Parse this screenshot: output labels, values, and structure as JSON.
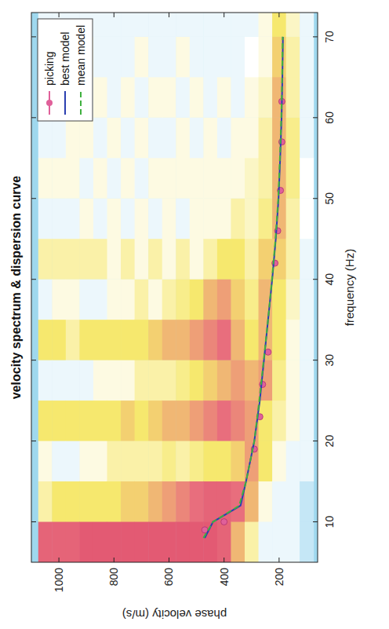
{
  "chart_data": {
    "type": "line",
    "title": "velocity spectrum & dispersion curve",
    "x_label": "frequency (Hz)",
    "y_label": "phase velocity (m/s)",
    "xlim": [
      5,
      73
    ],
    "ylim": [
      60,
      1100
    ],
    "xticks": [
      10,
      20,
      30,
      40,
      50,
      60,
      70
    ],
    "yticks": [
      200,
      400,
      600,
      800,
      1000
    ],
    "legend": "upper right",
    "grid": false,
    "series": [
      {
        "name": "picking",
        "color": "#e0609a",
        "type": "scatter",
        "marker": "circle",
        "line_style": "none",
        "x": [
          9,
          10,
          19,
          23,
          27,
          31,
          42,
          46,
          51,
          57,
          62
        ],
        "values": [
          470,
          400,
          290,
          270,
          260,
          240,
          215,
          205,
          195,
          190,
          190
        ]
      },
      {
        "name": "best model",
        "color": "#2b3fb0",
        "type": "line",
        "line_style": "solid",
        "x": [
          8,
          10,
          12,
          15,
          20,
          25,
          30,
          35,
          40,
          45,
          50,
          55,
          60,
          65,
          70
        ],
        "values": [
          470,
          440,
          340,
          320,
          290,
          270,
          255,
          240,
          225,
          212,
          202,
          196,
          191,
          188,
          186
        ]
      },
      {
        "name": "mean model",
        "color": "#3fb03f",
        "type": "line",
        "line_style": "dashed",
        "x": [
          8,
          10,
          12,
          15,
          20,
          25,
          30,
          35,
          40,
          45,
          50,
          55,
          60,
          65,
          70
        ],
        "values": [
          475,
          440,
          345,
          320,
          290,
          272,
          256,
          240,
          226,
          213,
          203,
          197,
          192,
          189,
          187
        ]
      }
    ],
    "spectrum": {
      "frequency": [
        7.5,
        12.5,
        17.5,
        22.5,
        27.5,
        32.5,
        37.5,
        42.5,
        47.5,
        52.5,
        57.5,
        62.5,
        67.5,
        72.5
      ],
      "velocity": [
        1050,
        1000,
        950,
        900,
        850,
        800,
        750,
        700,
        650,
        600,
        550,
        500,
        450,
        400,
        350,
        300,
        250,
        200,
        150,
        100
      ],
      "values": [
        [
          0.9,
          0.5,
          0.4,
          0.6,
          0.3,
          0.6,
          0.3,
          0.5,
          0.3,
          0.4,
          0.3,
          0.4,
          0.3,
          0.3
        ],
        [
          0.9,
          0.6,
          0.3,
          0.6,
          0.3,
          0.6,
          0.4,
          0.5,
          0.3,
          0.4,
          0.3,
          0.4,
          0.3,
          0.3
        ],
        [
          0.9,
          0.6,
          0.3,
          0.6,
          0.3,
          0.5,
          0.4,
          0.5,
          0.3,
          0.4,
          0.4,
          0.3,
          0.3,
          0.3
        ],
        [
          0.95,
          0.6,
          0.4,
          0.6,
          0.3,
          0.6,
          0.3,
          0.5,
          0.4,
          0.3,
          0.4,
          0.3,
          0.4,
          0.3
        ],
        [
          0.95,
          0.6,
          0.4,
          0.6,
          0.4,
          0.6,
          0.3,
          0.5,
          0.3,
          0.4,
          0.3,
          0.4,
          0.3,
          0.3
        ],
        [
          0.95,
          0.6,
          0.5,
          0.6,
          0.4,
          0.6,
          0.4,
          0.4,
          0.4,
          0.3,
          0.4,
          0.3,
          0.3,
          0.3
        ],
        [
          0.95,
          0.65,
          0.5,
          0.65,
          0.4,
          0.6,
          0.4,
          0.5,
          0.3,
          0.4,
          0.3,
          0.4,
          0.3,
          0.3
        ],
        [
          0.95,
          0.65,
          0.5,
          0.6,
          0.5,
          0.6,
          0.5,
          0.4,
          0.4,
          0.3,
          0.4,
          0.3,
          0.4,
          0.3
        ],
        [
          0.95,
          0.7,
          0.5,
          0.65,
          0.5,
          0.65,
          0.4,
          0.5,
          0.3,
          0.4,
          0.3,
          0.4,
          0.3,
          0.3
        ],
        [
          0.95,
          0.75,
          0.55,
          0.7,
          0.5,
          0.7,
          0.5,
          0.4,
          0.4,
          0.4,
          0.3,
          0.4,
          0.3,
          0.3
        ],
        [
          0.95,
          0.8,
          0.5,
          0.7,
          0.55,
          0.7,
          0.55,
          0.5,
          0.3,
          0.4,
          0.4,
          0.3,
          0.4,
          0.3
        ],
        [
          0.95,
          0.85,
          0.55,
          0.75,
          0.6,
          0.75,
          0.6,
          0.4,
          0.4,
          0.4,
          0.3,
          0.4,
          0.3,
          0.3
        ],
        [
          0.95,
          0.9,
          0.6,
          0.8,
          0.65,
          0.8,
          0.7,
          0.5,
          0.4,
          0.4,
          0.4,
          0.3,
          0.3,
          0.3
        ],
        [
          0.9,
          0.9,
          0.6,
          0.85,
          0.7,
          0.85,
          0.75,
          0.6,
          0.4,
          0.4,
          0.3,
          0.4,
          0.3,
          0.3
        ],
        [
          0.7,
          0.85,
          0.65,
          0.8,
          0.75,
          0.7,
          0.65,
          0.6,
          0.5,
          0.4,
          0.4,
          0.3,
          0.3,
          0.3
        ],
        [
          0.5,
          0.7,
          0.75,
          0.75,
          0.7,
          0.6,
          0.55,
          0.5,
          0.45,
          0.45,
          0.4,
          0.4,
          0.35,
          0.3
        ],
        [
          0.3,
          0.4,
          0.6,
          0.6,
          0.75,
          0.7,
          0.7,
          0.65,
          0.55,
          0.5,
          0.5,
          0.45,
          0.4,
          0.4
        ],
        [
          0.3,
          0.3,
          0.4,
          0.5,
          0.55,
          0.6,
          0.6,
          0.65,
          0.7,
          0.7,
          0.7,
          0.7,
          0.65,
          0.6
        ],
        [
          0.3,
          0.3,
          0.3,
          0.4,
          0.4,
          0.4,
          0.45,
          0.5,
          0.5,
          0.55,
          0.55,
          0.5,
          0.5,
          0.45
        ],
        [
          0.2,
          0.2,
          0.3,
          0.3,
          0.3,
          0.3,
          0.3,
          0.3,
          0.35,
          0.35,
          0.3,
          0.3,
          0.3,
          0.3
        ]
      ]
    }
  }
}
